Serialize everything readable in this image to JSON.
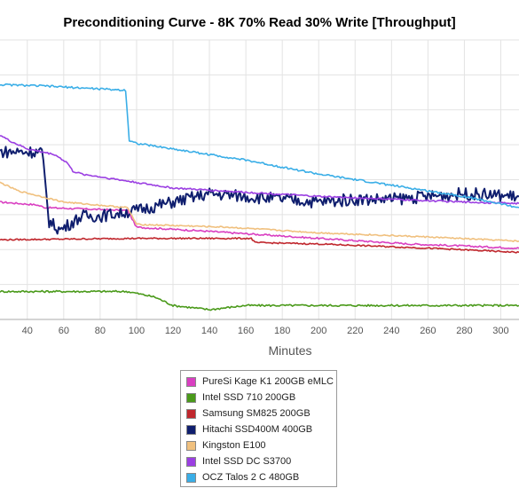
{
  "chart_data": {
    "type": "line",
    "title": "Preconditioning Curve - 8K 70% Read 30% Write [Throughput]",
    "xlabel": "Minutes",
    "ylabel": "",
    "xlim": [
      25,
      310
    ],
    "ylim": [
      0,
      100
    ],
    "x_ticks": [
      40,
      60,
      80,
      100,
      120,
      140,
      160,
      180,
      200,
      220,
      240,
      260,
      280,
      300
    ],
    "grid": true,
    "legend_position": "bottom-center",
    "series": [
      {
        "name": "PureSi Kage K1 200GB eMLC",
        "color": "#d93fc1",
        "x": [
          25,
          45,
          50,
          95,
          100,
          140,
          200,
          250,
          310
        ],
        "y": [
          42,
          41,
          40,
          39,
          33,
          31.5,
          29,
          27,
          25.5
        ]
      },
      {
        "name": "Intel SSD 710 200GB",
        "color": "#4a9a1a",
        "x": [
          25,
          60,
          95,
          110,
          120,
          140,
          160,
          200,
          260,
          310
        ],
        "y": [
          10,
          10,
          10,
          8,
          5,
          3.5,
          5,
          5,
          5,
          5
        ]
      },
      {
        "name": "Samsung SM825 200GB",
        "color": "#c0272d",
        "x": [
          25,
          100,
          163,
          165,
          200,
          260,
          310
        ],
        "y": [
          28.5,
          29,
          29,
          27.5,
          27,
          25.5,
          24
        ]
      },
      {
        "name": "Hitachi SSD400M 400GB",
        "color": "#0f1e6e",
        "x": [
          25,
          48,
          52,
          58,
          70,
          80,
          100,
          120,
          140,
          160,
          180,
          200,
          220,
          240,
          260,
          280,
          310
        ],
        "y": [
          60,
          60,
          35,
          32,
          37,
          37,
          39,
          42,
          45,
          44,
          43,
          42,
          43,
          43,
          44,
          45,
          44
        ]
      },
      {
        "name": "Kingston E100",
        "color": "#f0c07e",
        "x": [
          25,
          35,
          60,
          95,
          100,
          150,
          200,
          260,
          310
        ],
        "y": [
          49,
          46,
          42,
          40,
          34,
          33,
          31,
          29.5,
          28
        ]
      },
      {
        "name": "Intel SSD DC S3700",
        "color": "#9b3fe2",
        "x": [
          25,
          30,
          40,
          55,
          62,
          65,
          70,
          90,
          120,
          160,
          200,
          240,
          280,
          310
        ],
        "y": [
          66,
          64,
          61,
          59,
          56,
          53,
          52,
          50,
          47,
          45.5,
          44,
          43,
          42,
          41.5
        ]
      },
      {
        "name": "OCZ Talos 2 C 480GB",
        "color": "#3aaee7",
        "x": [
          25,
          50,
          94,
          96,
          100,
          110,
          140,
          160,
          200,
          240,
          280,
          310
        ],
        "y": [
          84,
          83.5,
          82,
          64,
          63,
          62,
          59,
          57,
          52,
          48,
          44,
          40
        ]
      }
    ]
  }
}
